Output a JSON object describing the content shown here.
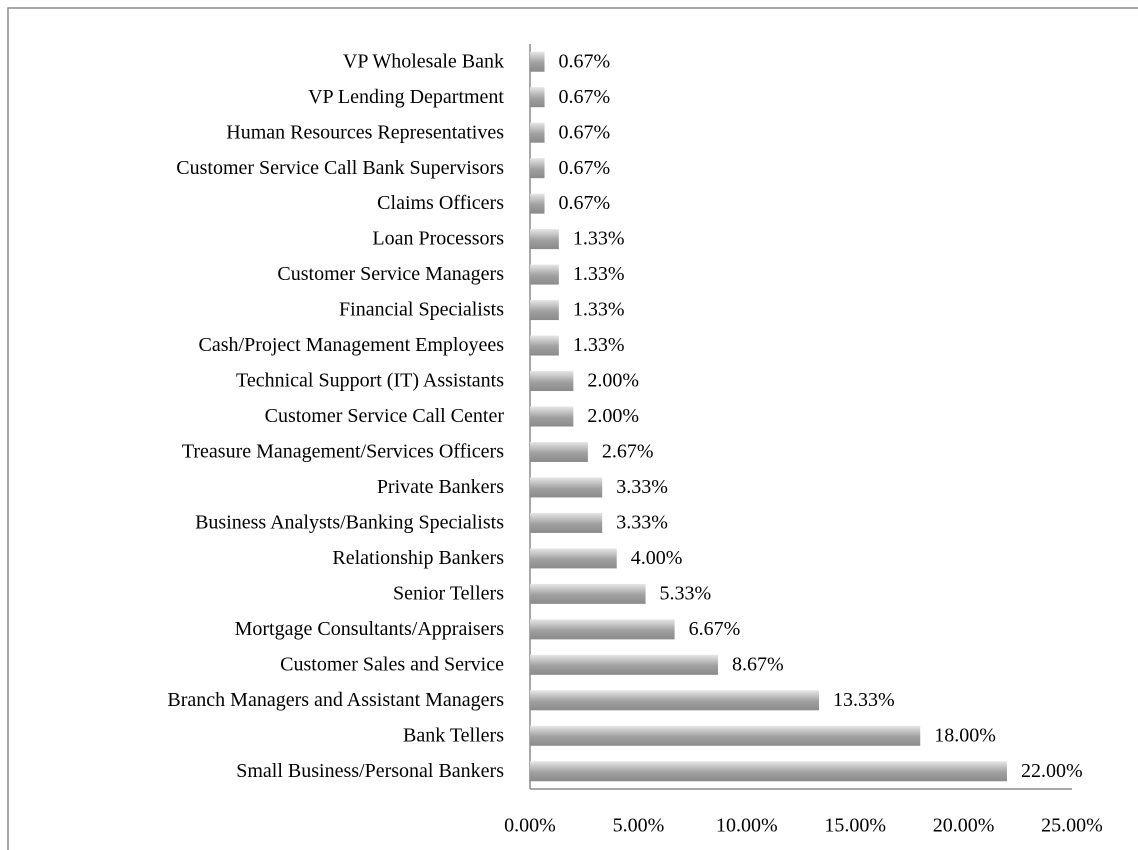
{
  "chart_data": {
    "type": "bar",
    "orientation": "horizontal",
    "categories": [
      "VP Wholesale Bank",
      "VP Lending Department",
      "Human Resources Representatives",
      "Customer Service Call Bank Supervisors",
      "Claims Officers",
      "Loan Processors",
      "Customer Service Managers",
      "Financial Specialists",
      "Cash/Project Management Employees",
      "Technical Support (IT) Assistants",
      "Customer Service Call Center",
      "Treasure Management/Services Officers",
      "Private Bankers",
      "Business Analysts/Banking Specialists",
      "Relationship Bankers",
      "Senior Tellers",
      "Mortgage Consultants/Appraisers",
      "Customer Sales and Service",
      "Branch Managers and Assistant Managers",
      "Bank Tellers",
      "Small Business/Personal Bankers"
    ],
    "values": [
      0.67,
      0.67,
      0.67,
      0.67,
      0.67,
      1.33,
      1.33,
      1.33,
      1.33,
      2.0,
      2.0,
      2.67,
      3.33,
      3.33,
      4.0,
      5.33,
      6.67,
      8.67,
      13.33,
      18.0,
      22.0
    ],
    "value_labels": [
      "0.67%",
      "0.67%",
      "0.67%",
      "0.67%",
      "0.67%",
      "1.33%",
      "1.33%",
      "1.33%",
      "1.33%",
      "2.00%",
      "2.00%",
      "2.67%",
      "3.33%",
      "3.33%",
      "4.00%",
      "5.33%",
      "6.67%",
      "8.67%",
      "13.33%",
      "18.00%",
      "22.00%"
    ],
    "color": "#a0a0a0",
    "xlim": [
      0,
      25
    ],
    "xticks": [
      {
        "value": 0,
        "label": "0.00%"
      },
      {
        "value": 5,
        "label": "5.00%"
      },
      {
        "value": 10,
        "label": "10.00%"
      },
      {
        "value": 15,
        "label": "15.00%"
      },
      {
        "value": 20,
        "label": "20.00%"
      },
      {
        "value": 25,
        "label": "25.00%"
      }
    ]
  }
}
